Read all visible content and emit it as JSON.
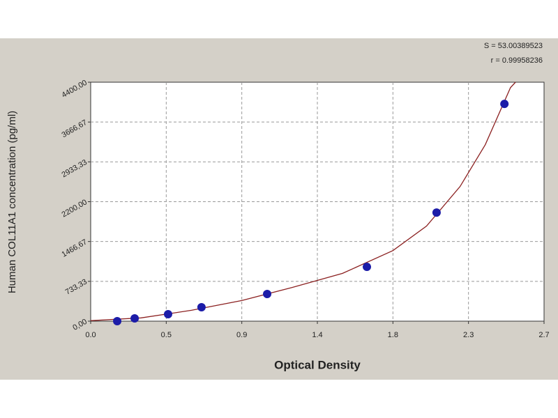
{
  "chart_data": {
    "type": "scatter",
    "x_label": "Optical Density",
    "y_label": "Human COL11A1 concentration (pg/ml)",
    "annotations": [
      "S = 53.00389523",
      "r = 0.99958236"
    ],
    "series": [
      {
        "color": "#1c1ca8",
        "x": [
          0.158,
          0.262,
          0.461,
          0.66,
          1.051,
          1.645,
          2.06,
          2.464
        ],
        "values": [
          0,
          51,
          128,
          257,
          500,
          1000,
          2000,
          4000
        ]
      }
    ],
    "curve": {
      "color": "#8b2020",
      "x": [
        0,
        0.3,
        0.6,
        0.9,
        1.2,
        1.5,
        1.8,
        2.0,
        2.2,
        2.35,
        2.5,
        2.53
      ],
      "values": [
        10,
        60,
        200,
        380,
        620,
        880,
        1300,
        1750,
        2480,
        3250,
        4300,
        4400
      ]
    },
    "xlim": [
      0,
      2.7
    ],
    "xticks": [
      {
        "value": 0,
        "label": "0.0"
      },
      {
        "value": 0.45,
        "label": "0.5"
      },
      {
        "value": 0.9,
        "label": "0.9"
      },
      {
        "value": 1.35,
        "label": "1.4"
      },
      {
        "value": 1.8,
        "label": "1.8"
      },
      {
        "value": 2.25,
        "label": "2.3"
      },
      {
        "value": 2.7,
        "label": "2.7"
      }
    ],
    "ylim": [
      0,
      4400
    ],
    "yticks": [
      {
        "value": 0,
        "label": "0,00"
      },
      {
        "value": 733.33,
        "label": "733,33"
      },
      {
        "value": 1466.67,
        "label": "1466,67"
      },
      {
        "value": 2200,
        "label": "2200,00"
      },
      {
        "value": 2933.33,
        "label": "2933,33"
      },
      {
        "value": 3666.67,
        "label": "3666,67"
      },
      {
        "value": 4400,
        "label": "4400,00"
      }
    ],
    "grid": true
  }
}
